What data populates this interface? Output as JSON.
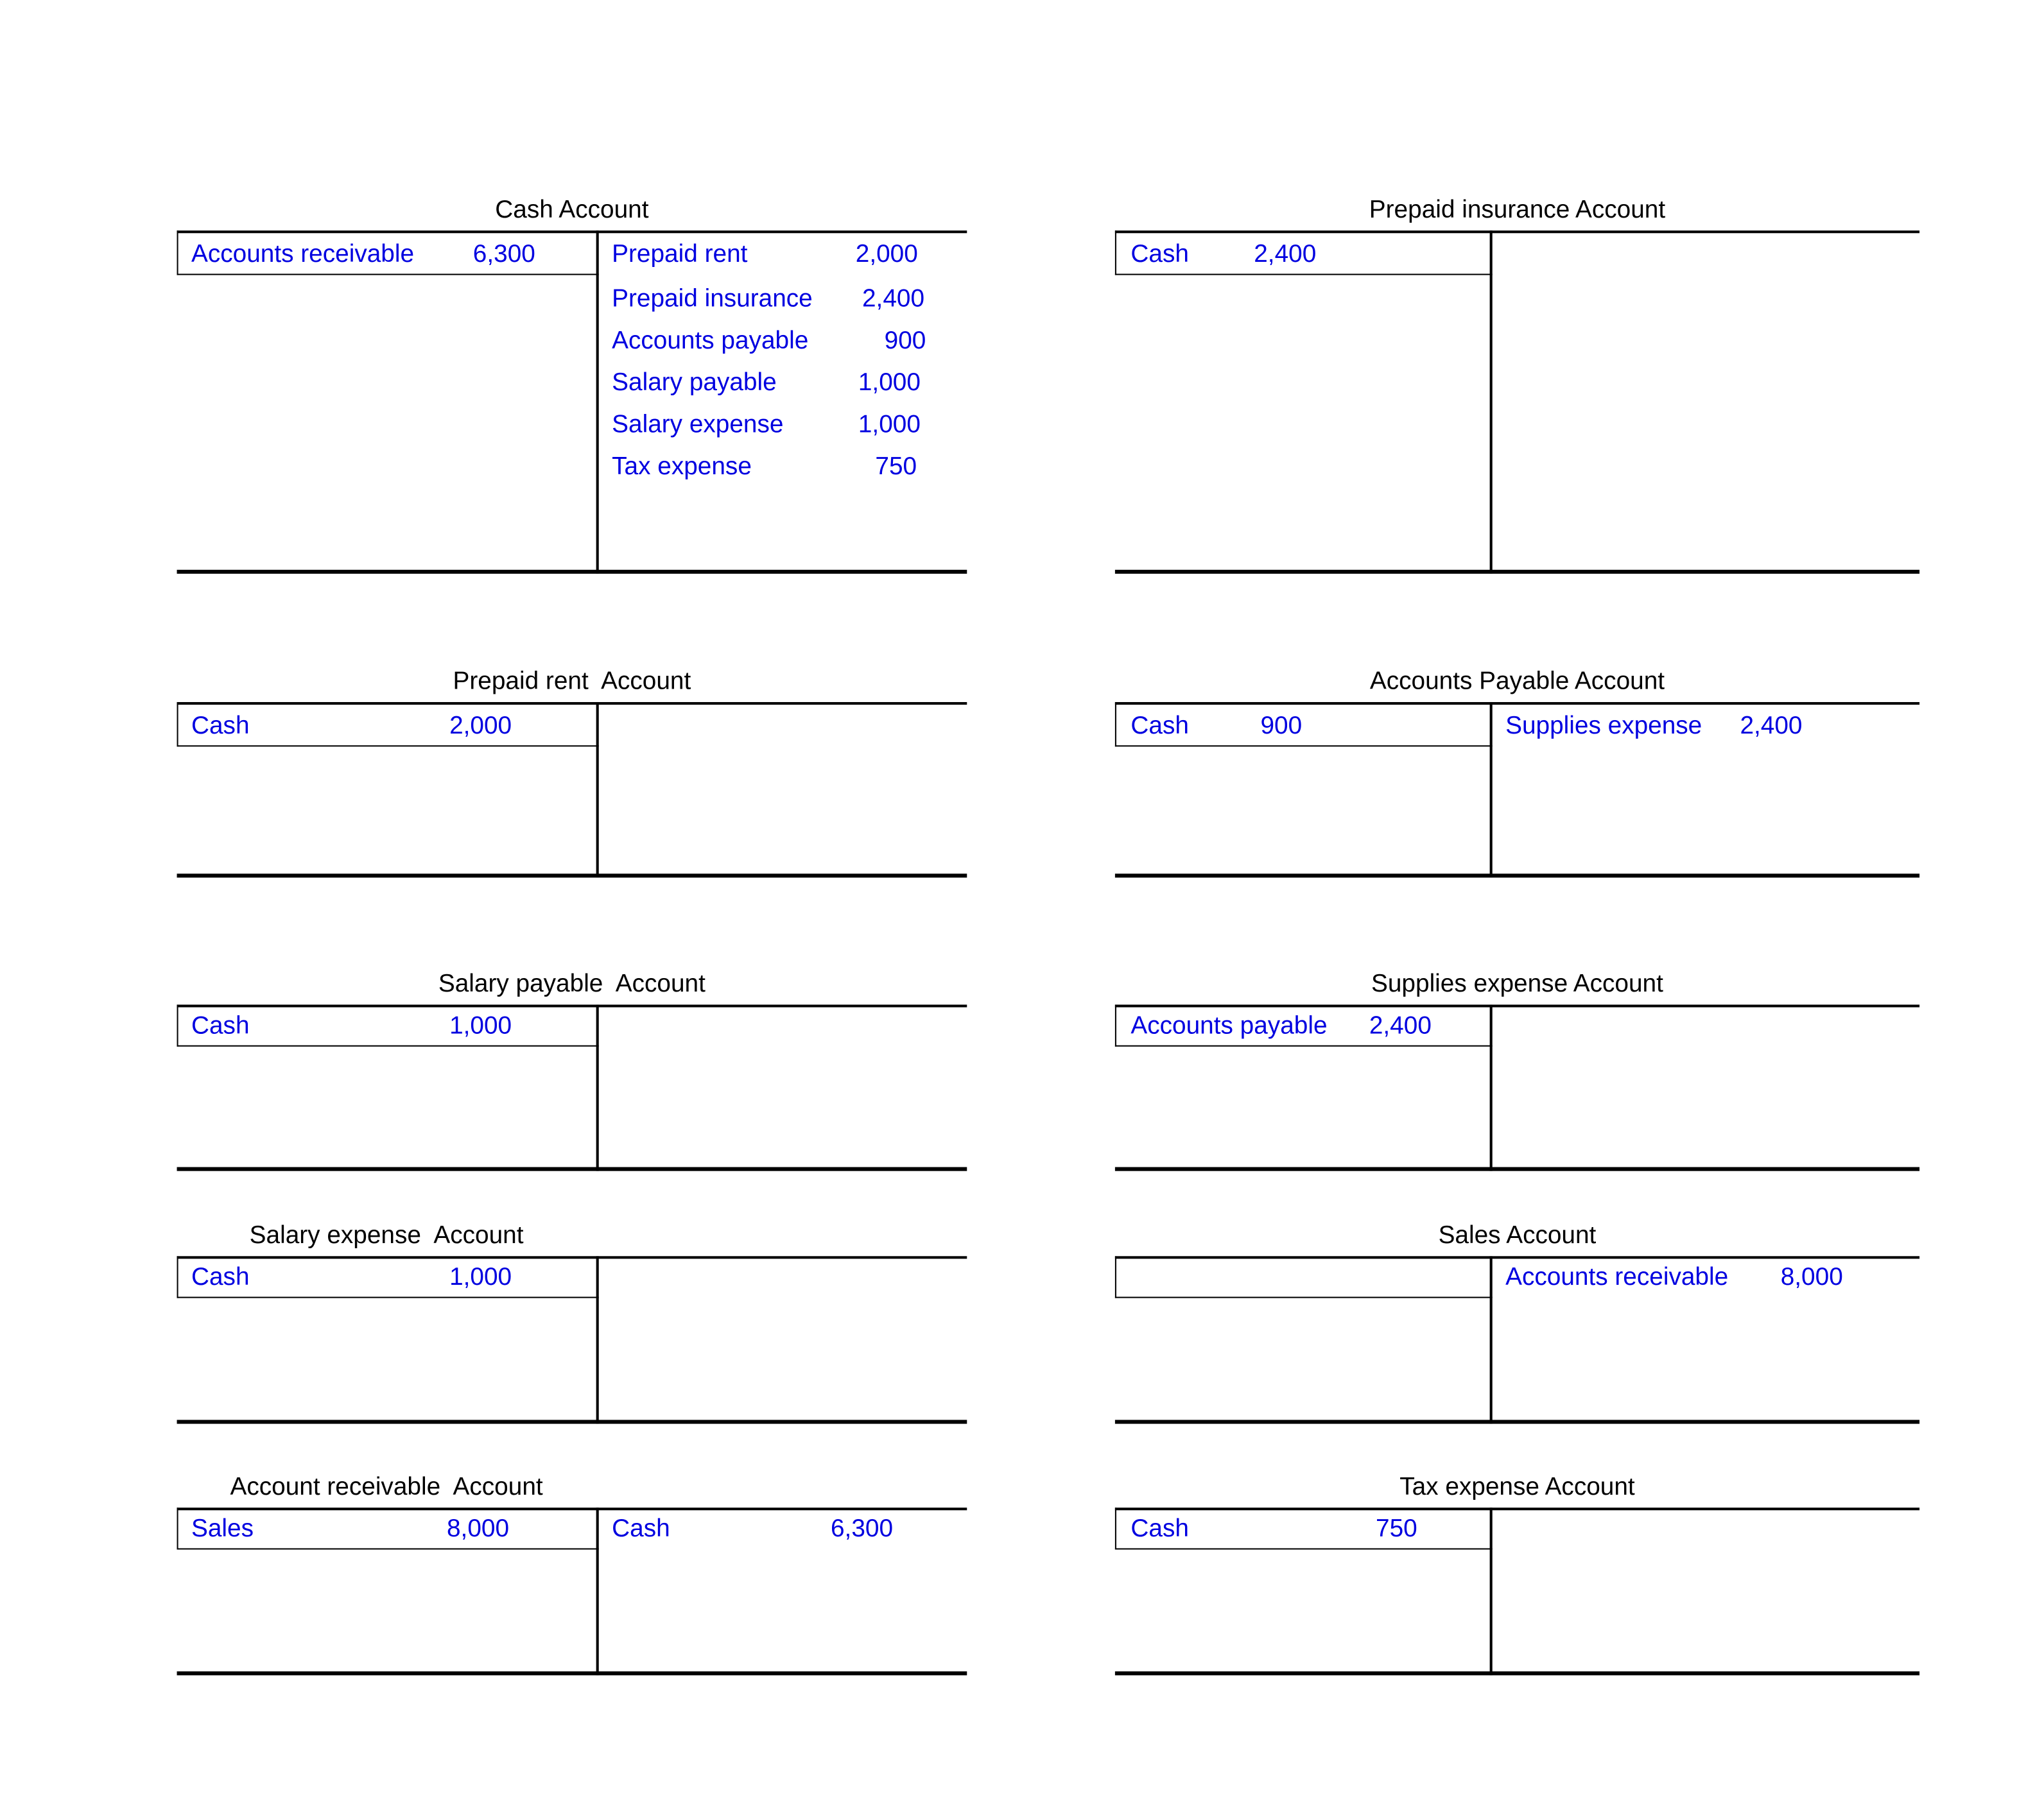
{
  "accounts": [
    {
      "title": "Cash Account",
      "debit": [
        {
          "label": "Accounts receivable",
          "amount": "6,300"
        }
      ],
      "credit": [
        {
          "label": "Prepaid rent",
          "amount": "2,000"
        },
        {
          "label": "Prepaid insurance",
          "amount": "2,400"
        },
        {
          "label": "Accounts payable",
          "amount": "900"
        },
        {
          "label": "Salary payable",
          "amount": "1,000"
        },
        {
          "label": "Salary expense",
          "amount": "1,000"
        },
        {
          "label": "Tax expense",
          "amount": "750"
        }
      ]
    },
    {
      "title": "Prepaid insurance Account",
      "debit": [
        {
          "label": "Cash",
          "amount": "2,400"
        }
      ],
      "credit": []
    },
    {
      "title": "Prepaid rent  Account",
      "debit": [
        {
          "label": "Cash",
          "amount": "2,000"
        }
      ],
      "credit": []
    },
    {
      "title": "Accounts Payable Account",
      "debit": [
        {
          "label": "Cash",
          "amount": "900"
        }
      ],
      "credit": [
        {
          "label": "Supplies expense",
          "amount": "2,400"
        }
      ]
    },
    {
      "title": "Salary payable  Account",
      "debit": [
        {
          "label": "Cash",
          "amount": "1,000"
        }
      ],
      "credit": []
    },
    {
      "title": "Supplies expense Account",
      "debit": [
        {
          "label": "Accounts payable",
          "amount": "2,400"
        }
      ],
      "credit": []
    },
    {
      "title": "Salary expense  Account",
      "debit": [
        {
          "label": "Cash",
          "amount": "1,000"
        }
      ],
      "credit": []
    },
    {
      "title": "Sales Account",
      "debit": [],
      "credit": [
        {
          "label": "Accounts receivable",
          "amount": "8,000"
        }
      ]
    },
    {
      "title": "Account receivable  Account",
      "debit": [
        {
          "label": "Sales",
          "amount": "8,000"
        }
      ],
      "credit": [
        {
          "label": "Cash",
          "amount": "6,300"
        }
      ]
    },
    {
      "title": "Tax expense Account",
      "debit": [
        {
          "label": "Cash",
          "amount": "750"
        }
      ],
      "credit": []
    }
  ],
  "colors": {
    "entry_text": "#0000e0",
    "lines": "#000000"
  }
}
